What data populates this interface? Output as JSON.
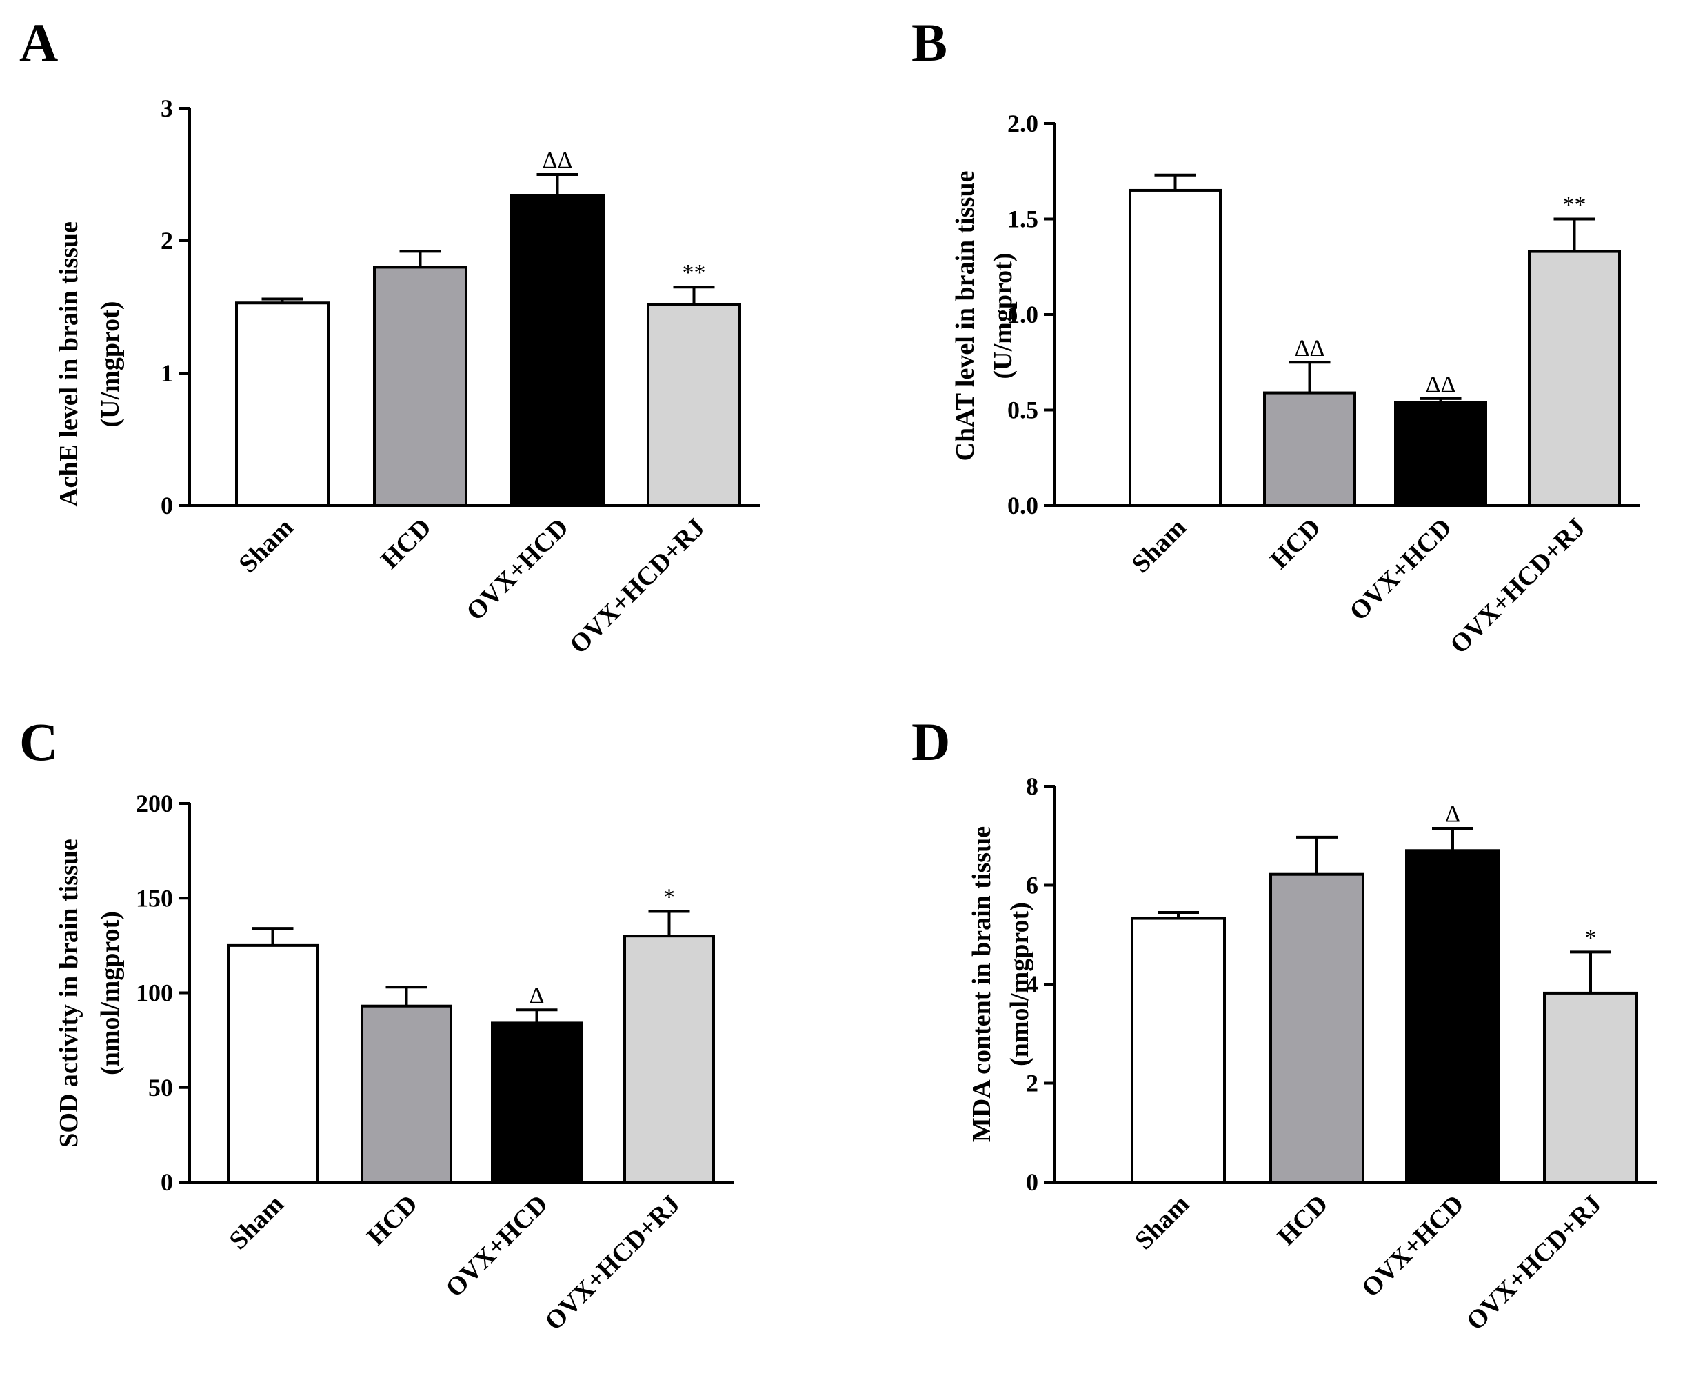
{
  "colors": {
    "Sham": "#ffffff",
    "HCD": "#a3a2a7",
    "OVX+HCD": "#000000",
    "OVX+HCD+RJ": "#d4d4d4",
    "stroke": "#000000"
  },
  "chart_data": [
    {
      "panel": "A",
      "type": "bar",
      "categories": [
        "Sham",
        "HCD",
        "OVX+HCD",
        "OVX+HCD+RJ"
      ],
      "values": [
        1.53,
        1.8,
        2.34,
        1.52
      ],
      "errors": [
        0.03,
        0.12,
        0.16,
        0.13
      ],
      "significance": [
        "",
        "",
        "ΔΔ",
        "**"
      ],
      "ylabel_line1": "AchE level in brain tissue",
      "ylabel_line2": "(U/mgprot)",
      "ylim": [
        0,
        3
      ],
      "yticks": [
        0,
        1,
        2,
        3
      ],
      "ytick_labels": [
        "0",
        "1",
        "2",
        "3"
      ]
    },
    {
      "panel": "B",
      "type": "bar",
      "categories": [
        "Sham",
        "HCD",
        "OVX+HCD",
        "OVX+HCD+RJ"
      ],
      "values": [
        1.65,
        0.59,
        0.54,
        1.33
      ],
      "errors": [
        0.08,
        0.16,
        0.02,
        0.17
      ],
      "significance": [
        "",
        "ΔΔ",
        "ΔΔ",
        "**"
      ],
      "ylabel_line1": "ChAT level in brain tissue",
      "ylabel_line2": "(U/mgprot)",
      "ylim": [
        0,
        2
      ],
      "yticks": [
        0,
        0.5,
        1,
        1.5,
        2
      ],
      "ytick_labels": [
        "0.0",
        "0.5",
        "1.0",
        "1.5",
        "2.0"
      ]
    },
    {
      "panel": "C",
      "type": "bar",
      "categories": [
        "Sham",
        "HCD",
        "OVX+HCD",
        "OVX+HCD+RJ"
      ],
      "values": [
        125,
        93,
        84,
        130
      ],
      "errors": [
        9,
        10,
        7,
        13
      ],
      "significance": [
        "",
        "",
        "Δ",
        "*"
      ],
      "ylabel_line1": "SOD activity in brain tissue",
      "ylabel_line2": "(nmol/mgprot)",
      "ylim": [
        0,
        200
      ],
      "yticks": [
        0,
        50,
        100,
        150,
        200
      ],
      "ytick_labels": [
        "0",
        "50",
        "100",
        "150",
        "200"
      ]
    },
    {
      "panel": "D",
      "type": "bar",
      "categories": [
        "Sham",
        "HCD",
        "OVX+HCD",
        "OVX+HCD+RJ"
      ],
      "values": [
        5.33,
        6.22,
        6.7,
        3.82
      ],
      "errors": [
        0.12,
        0.75,
        0.45,
        0.83
      ],
      "significance": [
        "",
        "",
        "Δ",
        "*"
      ],
      "ylabel_line1": "MDA content in brain tissue",
      "ylabel_line2": "(nmol/mgprot)",
      "ylim": [
        0,
        8
      ],
      "yticks": [
        0,
        2,
        4,
        6,
        8
      ],
      "ytick_labels": [
        "0",
        "2",
        "4",
        "6",
        "8"
      ]
    }
  ]
}
